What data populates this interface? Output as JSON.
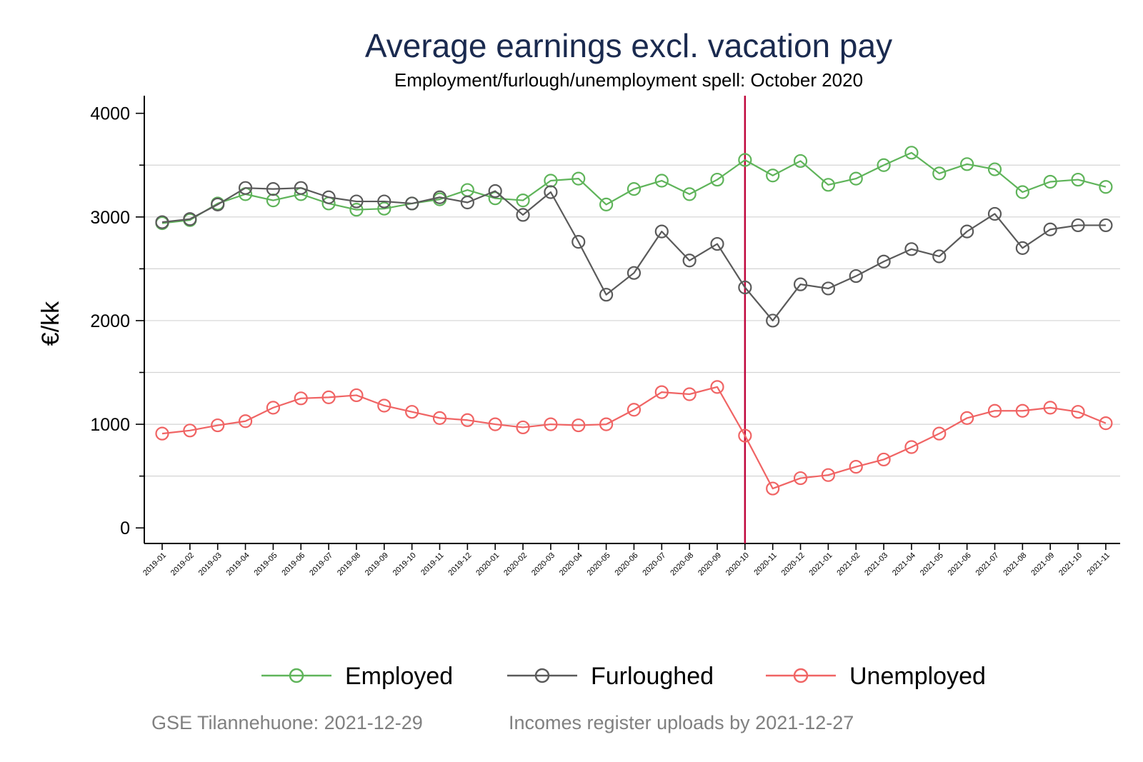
{
  "chart_data": {
    "type": "line",
    "title": "Average earnings excl. vacation pay",
    "subtitle": "Employment/furlough/unemployment spell: October 2020",
    "ylabel": "€/kk",
    "xlabel": "",
    "ylim": [
      -150,
      4170
    ],
    "yticks": [
      0,
      1000,
      2000,
      3000,
      4000
    ],
    "grid": true,
    "legend_position": "bottom",
    "reference_line": {
      "x": "2020-10",
      "color": "#c0063c"
    },
    "categories": [
      "2019-01",
      "2019-02",
      "2019-03",
      "2019-04",
      "2019-05",
      "2019-06",
      "2019-07",
      "2019-08",
      "2019-09",
      "2019-10",
      "2019-11",
      "2019-12",
      "2020-01",
      "2020-02",
      "2020-03",
      "2020-04",
      "2020-05",
      "2020-06",
      "2020-07",
      "2020-08",
      "2020-09",
      "2020-10",
      "2020-11",
      "2020-12",
      "2021-01",
      "2021-02",
      "2021-03",
      "2021-04",
      "2021-05",
      "2021-06",
      "2021-07",
      "2021-08",
      "2021-09",
      "2021-10",
      "2021-11"
    ],
    "series": [
      {
        "name": "Employed",
        "color": "#5fb45a",
        "values": [
          2940,
          2970,
          3130,
          3220,
          3160,
          3220,
          3130,
          3070,
          3080,
          3130,
          3170,
          3260,
          3180,
          3160,
          3350,
          3370,
          3120,
          3270,
          3350,
          3220,
          3360,
          3550,
          3400,
          3540,
          3310,
          3370,
          3500,
          3620,
          3420,
          3510,
          3460,
          3240,
          3340,
          3360,
          3290
        ]
      },
      {
        "name": "Furloughed",
        "color": "#5a5a5a",
        "values": [
          2950,
          2980,
          3120,
          3280,
          3270,
          3280,
          3190,
          3150,
          3150,
          3130,
          3190,
          3140,
          3250,
          3020,
          3240,
          2760,
          2250,
          2460,
          2860,
          2580,
          2740,
          2320,
          2000,
          2350,
          2310,
          2430,
          2570,
          2690,
          2620,
          2860,
          3030,
          2700,
          2880,
          2920,
          2920
        ]
      },
      {
        "name": "Unemployed",
        "color": "#f06464",
        "values": [
          910,
          940,
          990,
          1030,
          1160,
          1250,
          1260,
          1280,
          1180,
          1120,
          1060,
          1040,
          1000,
          970,
          1000,
          990,
          1000,
          1140,
          1310,
          1290,
          1360,
          890,
          380,
          480,
          510,
          590,
          660,
          780,
          910,
          1060,
          1130,
          1130,
          1160,
          1120,
          1010
        ]
      }
    ]
  },
  "footer": {
    "left": "GSE Tilannehuone: 2021-12-29",
    "right": "Incomes register uploads by 2021-12-27"
  }
}
